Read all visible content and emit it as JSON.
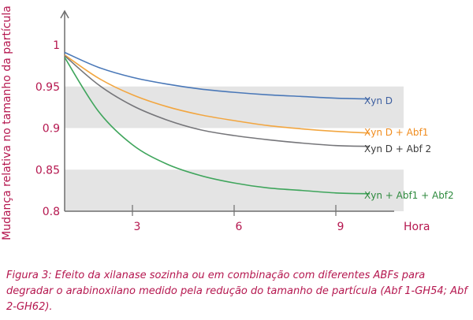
{
  "chart_data": {
    "type": "line",
    "ylabel": "Mudança relativa no tamanho da partícula",
    "xlabel": "Hora",
    "xlim": [
      1,
      11
    ],
    "ylim": [
      0.8,
      1.0
    ],
    "x_ticks": [
      3,
      6,
      9
    ],
    "y_ticks": [
      0.8,
      0.85,
      0.9,
      0.95,
      1
    ],
    "y_tick_labels": [
      "0.8",
      "0.85",
      "0.9",
      "0.95",
      "1"
    ],
    "shaded_bands": [
      [
        0.9,
        0.95
      ],
      [
        0.8,
        0.85
      ]
    ],
    "series": [
      {
        "name": "Xyn D",
        "color": "#4a78b8",
        "points": [
          [
            1,
            0.991
          ],
          [
            2,
            0.973
          ],
          [
            3,
            0.961
          ],
          [
            4,
            0.953
          ],
          [
            5,
            0.947
          ],
          [
            6,
            0.943
          ],
          [
            7,
            0.94
          ],
          [
            8,
            0.938
          ],
          [
            9,
            0.936
          ],
          [
            10,
            0.935
          ]
        ]
      },
      {
        "name": "Xyn D + Abf1",
        "color": "#f2a640",
        "points": [
          [
            1,
            0.988
          ],
          [
            2,
            0.96
          ],
          [
            3,
            0.94
          ],
          [
            4,
            0.926
          ],
          [
            5,
            0.916
          ],
          [
            6,
            0.909
          ],
          [
            7,
            0.903
          ],
          [
            8,
            0.899
          ],
          [
            9,
            0.896
          ],
          [
            10,
            0.894
          ]
        ]
      },
      {
        "name": "Xyn D + Abf 2",
        "color": "#76767a",
        "points": [
          [
            1,
            0.987
          ],
          [
            2,
            0.952
          ],
          [
            3,
            0.927
          ],
          [
            4,
            0.91
          ],
          [
            5,
            0.898
          ],
          [
            6,
            0.891
          ],
          [
            7,
            0.886
          ],
          [
            8,
            0.882
          ],
          [
            9,
            0.879
          ],
          [
            10,
            0.878
          ]
        ]
      },
      {
        "name": "Xyn + Abf1 + Abf2",
        "color": "#3fa55c",
        "points": [
          [
            1,
            0.985
          ],
          [
            2,
            0.92
          ],
          [
            3,
            0.88
          ],
          [
            4,
            0.857
          ],
          [
            5,
            0.843
          ],
          [
            6,
            0.834
          ],
          [
            7,
            0.828
          ],
          [
            8,
            0.825
          ],
          [
            9,
            0.822
          ],
          [
            10,
            0.821
          ]
        ]
      }
    ],
    "label_colors": [
      "#3d5fa0",
      "#f08c1e",
      "#3a3a3a",
      "#2e8a3e"
    ]
  },
  "caption": "Figura 3: Efeito da xilanase sozinha ou em combinação com diferentes ABFs para degradar o arabinoxilano medido pela redução do tamanho de partícula (Abf 1-GH54; Abf 2-GH62)."
}
